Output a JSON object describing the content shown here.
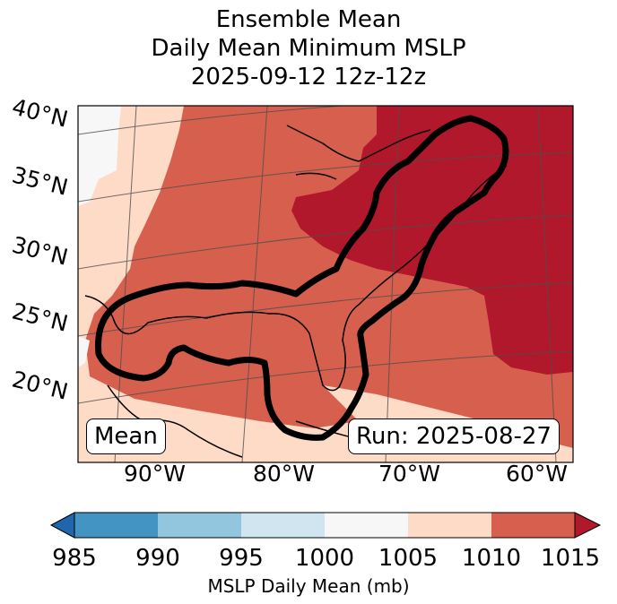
{
  "title": {
    "line1": "Ensemble Mean",
    "line2": "Daily Mean Minimum MSLP",
    "line3": "2025-09-12 12z-12z"
  },
  "lat_labels": [
    "40°N",
    "35°N",
    "30°N",
    "25°N",
    "20°N"
  ],
  "lon_labels": [
    "90°W",
    "80°W",
    "70°W",
    "60°W"
  ],
  "annotations": {
    "mean_box": "Mean",
    "run_box": "Run: 2025-08-27"
  },
  "colorbar": {
    "label": "MSLP Daily Mean (mb)",
    "ticks": [
      "985",
      "990",
      "995",
      "1000",
      "1005",
      "1010",
      "1015"
    ],
    "colors": [
      "#2166ac",
      "#4393c3",
      "#92c5de",
      "#d1e5f0",
      "#f7f7f7",
      "#fddbc7",
      "#d6604d",
      "#b2182b"
    ],
    "under_color": "#2166ac",
    "over_color": "#b2182b"
  },
  "map_colors": {
    "band_1000_1005": "#f7f7f7",
    "band_1005_1010": "#fddbc7",
    "band_1010_1015": "#d6604d",
    "band_above_1015": "#b2182b",
    "contour": "#000000"
  }
}
